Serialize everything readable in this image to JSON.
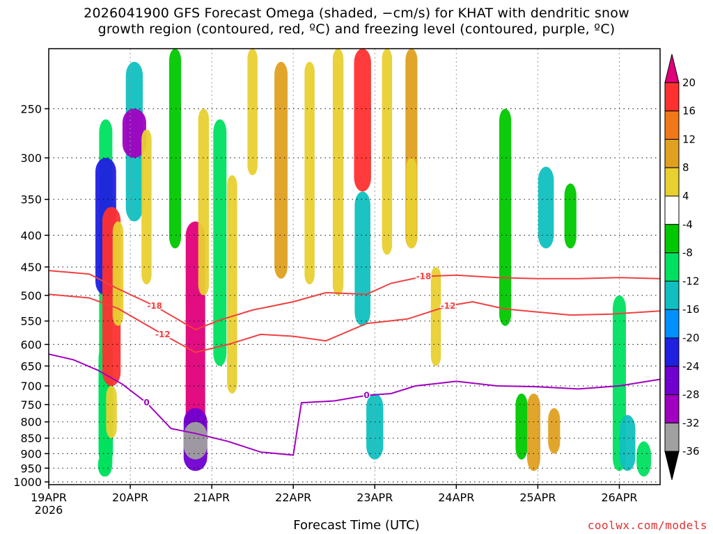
{
  "chart_data": {
    "type": "heatmap",
    "title_line1": "2026041900 GFS Forecast Omega (shaded, −cm/s) for KHAT with dendritic snow",
    "title_line2": "growth region (contoured, red, ºC) and freezing level (contoured, purple, ºC)",
    "xlabel": "Forecast Time (UTC)",
    "watermark": "coolwx.com/models",
    "x_ticks": [
      {
        "label": "19APR",
        "sub": "2026",
        "day": 0
      },
      {
        "label": "20APR",
        "sub": "",
        "day": 1
      },
      {
        "label": "21APR",
        "sub": "",
        "day": 2
      },
      {
        "label": "22APR",
        "sub": "",
        "day": 3
      },
      {
        "label": "23APR",
        "sub": "",
        "day": 4
      },
      {
        "label": "24APR",
        "sub": "",
        "day": 5
      },
      {
        "label": "25APR",
        "sub": "",
        "day": 6
      },
      {
        "label": "26APR",
        "sub": "",
        "day": 7
      }
    ],
    "x_range_days": [
      0,
      7.5
    ],
    "y_ticks": [
      250,
      300,
      350,
      400,
      450,
      500,
      550,
      600,
      650,
      700,
      750,
      800,
      850,
      900,
      950,
      1000
    ],
    "y_range_hpa": [
      200,
      1010
    ],
    "y_scale": "log-pressure",
    "grid": true,
    "colorbar": {
      "levels": [
        20,
        16,
        12,
        8,
        4,
        -4,
        -8,
        -12,
        -16,
        -20,
        -24,
        -28,
        -32,
        -36
      ],
      "colors": [
        "#e0007a",
        "#ff3030",
        "#f07818",
        "#e0a020",
        "#e8d030",
        "#ffffff",
        "#00c800",
        "#00e060",
        "#10c0c0",
        "#0090ff",
        "#2020e0",
        "#7000d0",
        "#a000c0",
        "#a0a0a0",
        "#000000"
      ]
    },
    "omega_cells": [
      {
        "t": 0.7,
        "p0": 260,
        "p1": 980,
        "v": -10
      },
      {
        "t": 0.7,
        "p0": 300,
        "p1": 500,
        "v": -22
      },
      {
        "t": 0.7,
        "p0": 600,
        "p1": 940,
        "v": -12
      },
      {
        "t": 0.68,
        "p0": 900,
        "p1": 980,
        "v": -9
      },
      {
        "t": 0.77,
        "p0": 360,
        "p1": 700,
        "v": 18
      },
      {
        "t": 0.77,
        "p0": 700,
        "p1": 850,
        "v": 6
      },
      {
        "t": 0.85,
        "p0": 380,
        "p1": 560,
        "v": 6
      },
      {
        "t": 1.05,
        "p0": 210,
        "p1": 380,
        "v": -16
      },
      {
        "t": 1.05,
        "p0": 250,
        "p1": 300,
        "v": -30
      },
      {
        "t": 1.2,
        "p0": 270,
        "p1": 480,
        "v": 5
      },
      {
        "t": 1.55,
        "p0": 200,
        "p1": 420,
        "v": -8
      },
      {
        "t": 1.8,
        "p0": 380,
        "p1": 900,
        "v": 20
      },
      {
        "t": 1.8,
        "p0": 760,
        "p1": 960,
        "v": -28
      },
      {
        "t": 1.8,
        "p0": 800,
        "p1": 920,
        "v": -36
      },
      {
        "t": 1.9,
        "p0": 250,
        "p1": 500,
        "v": 6
      },
      {
        "t": 2.1,
        "p0": 260,
        "p1": 650,
        "v": -10
      },
      {
        "t": 2.25,
        "p0": 320,
        "p1": 720,
        "v": 5
      },
      {
        "t": 2.5,
        "p0": 200,
        "p1": 320,
        "v": 5
      },
      {
        "t": 2.85,
        "p0": 210,
        "p1": 470,
        "v": 10
      },
      {
        "t": 3.2,
        "p0": 210,
        "p1": 480,
        "v": 5
      },
      {
        "t": 3.55,
        "p0": 200,
        "p1": 500,
        "v": 6
      },
      {
        "t": 3.85,
        "p0": 200,
        "p1": 340,
        "v": 16
      },
      {
        "t": 3.85,
        "p0": 340,
        "p1": 560,
        "v": -14
      },
      {
        "t": 4.0,
        "p0": 720,
        "p1": 920,
        "v": -16
      },
      {
        "t": 4.15,
        "p0": 200,
        "p1": 430,
        "v": 5
      },
      {
        "t": 4.45,
        "p0": 200,
        "p1": 420,
        "v": 8
      },
      {
        "t": 4.45,
        "p0": 300,
        "p1": 420,
        "v": 6
      },
      {
        "t": 4.75,
        "p0": 450,
        "p1": 650,
        "v": 5
      },
      {
        "t": 5.6,
        "p0": 250,
        "p1": 560,
        "v": -8
      },
      {
        "t": 5.8,
        "p0": 720,
        "p1": 920,
        "v": -8
      },
      {
        "t": 5.95,
        "p0": 720,
        "p1": 960,
        "v": 10
      },
      {
        "t": 6.1,
        "p0": 310,
        "p1": 420,
        "v": -14
      },
      {
        "t": 6.2,
        "p0": 760,
        "p1": 900,
        "v": 8
      },
      {
        "t": 6.4,
        "p0": 330,
        "p1": 420,
        "v": -8
      },
      {
        "t": 7.0,
        "p0": 500,
        "p1": 960,
        "v": -10
      },
      {
        "t": 7.1,
        "p0": 780,
        "p1": 960,
        "v": -14
      },
      {
        "t": 7.3,
        "p0": 860,
        "p1": 980,
        "v": -12
      }
    ],
    "contours": [
      {
        "label": "-18",
        "color": "#f04040",
        "points": [
          [
            0,
            456
          ],
          [
            0.5,
            462
          ],
          [
            0.85,
            488
          ],
          [
            1.3,
            520
          ],
          [
            1.8,
            568
          ],
          [
            2.1,
            548
          ],
          [
            2.5,
            528
          ],
          [
            3.0,
            512
          ],
          [
            3.4,
            495
          ],
          [
            3.9,
            498
          ],
          [
            4.2,
            478
          ],
          [
            4.6,
            466
          ],
          [
            5.0,
            464
          ],
          [
            5.5,
            468
          ],
          [
            6.0,
            470
          ],
          [
            6.5,
            470
          ],
          [
            7.0,
            468
          ],
          [
            7.5,
            470
          ]
        ]
      },
      {
        "label": "-12",
        "color": "#f04040",
        "points": [
          [
            0,
            498
          ],
          [
            0.5,
            505
          ],
          [
            0.85,
            525
          ],
          [
            1.4,
            578
          ],
          [
            1.8,
            618
          ],
          [
            2.2,
            600
          ],
          [
            2.6,
            578
          ],
          [
            3.0,
            582
          ],
          [
            3.4,
            592
          ],
          [
            3.9,
            555
          ],
          [
            4.4,
            546
          ],
          [
            4.9,
            520
          ],
          [
            5.2,
            512
          ],
          [
            5.6,
            526
          ],
          [
            6.0,
            532
          ],
          [
            6.4,
            538
          ],
          [
            6.9,
            536
          ],
          [
            7.5,
            530
          ]
        ]
      },
      {
        "label": "0",
        "color": "#a000c0",
        "points": [
          [
            0,
            622
          ],
          [
            0.3,
            635
          ],
          [
            0.6,
            660
          ],
          [
            0.9,
            695
          ],
          [
            1.2,
            745
          ],
          [
            1.5,
            820
          ],
          [
            1.8,
            835
          ],
          [
            2.2,
            860
          ],
          [
            2.6,
            895
          ],
          [
            3.0,
            905
          ],
          [
            3.05,
            820
          ],
          [
            3.1,
            745
          ],
          [
            3.5,
            740
          ],
          [
            3.9,
            725
          ],
          [
            4.2,
            720
          ],
          [
            4.5,
            700
          ],
          [
            5.0,
            688
          ],
          [
            5.5,
            700
          ],
          [
            6.0,
            702
          ],
          [
            6.5,
            708
          ],
          [
            7.0,
            700
          ],
          [
            7.5,
            683
          ]
        ]
      }
    ]
  }
}
